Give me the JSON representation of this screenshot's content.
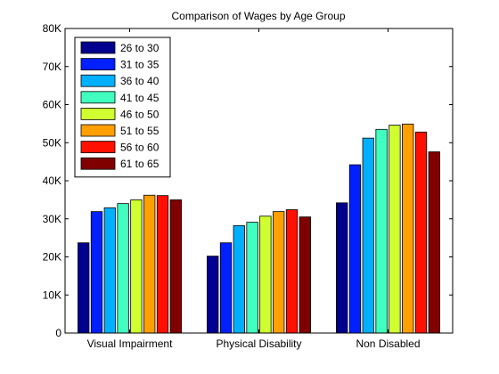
{
  "chart_data": {
    "type": "bar",
    "title": "Comparison of Wages by Age Group",
    "xlabel": "",
    "ylabel": "",
    "categories": [
      "Visual Impairment",
      "Physical Disability",
      "Non Disabled"
    ],
    "ylim": [
      0,
      80000
    ],
    "yticks": [
      0,
      10000,
      20000,
      30000,
      40000,
      50000,
      60000,
      70000,
      80000
    ],
    "ytick_labels": [
      "0",
      "10K",
      "20K",
      "30K",
      "40K",
      "50K",
      "60K",
      "70K",
      "80K"
    ],
    "grid": false,
    "legend_position": "top-left",
    "series": [
      {
        "name": "26 to 30",
        "color": "#00008f",
        "values": [
          23700,
          20200,
          34200
        ]
      },
      {
        "name": "31 to 35",
        "color": "#0020ff",
        "values": [
          31900,
          23700,
          44200
        ]
      },
      {
        "name": "36 to 40",
        "color": "#00b0ff",
        "values": [
          32900,
          28200,
          51200
        ]
      },
      {
        "name": "41 to 45",
        "color": "#40ffbf",
        "values": [
          34000,
          29100,
          53500
        ]
      },
      {
        "name": "46 to 50",
        "color": "#cfff30",
        "values": [
          35000,
          30700,
          54600
        ]
      },
      {
        "name": "51 to 55",
        "color": "#ff9f00",
        "values": [
          36200,
          31900,
          54900
        ]
      },
      {
        "name": "56 to 60",
        "color": "#ff1000",
        "values": [
          36100,
          32400,
          52800
        ]
      },
      {
        "name": "61 to 65",
        "color": "#800000",
        "values": [
          35000,
          30500,
          47600
        ]
      }
    ]
  }
}
